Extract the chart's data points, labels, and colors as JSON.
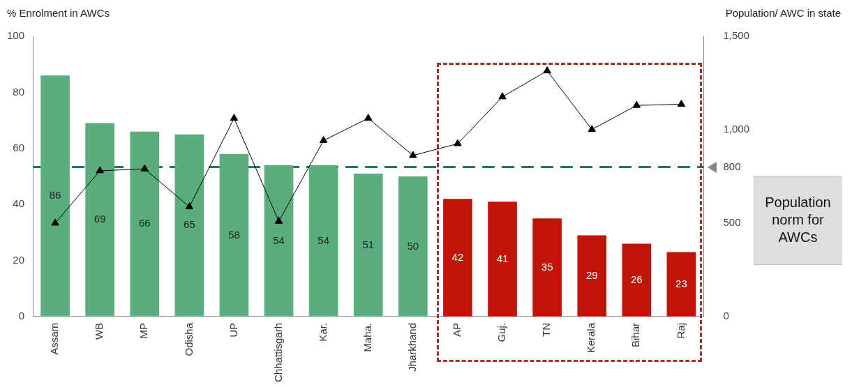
{
  "chart_data": {
    "type": "bar",
    "ylabel": "% Enrolment in AWCs",
    "y2label": "Population/ AWC in state",
    "categories": [
      "Assam",
      "WB",
      "MP",
      "Odisha",
      "UP",
      "Chhattisgarh",
      "Kar.",
      "Maha.",
      "Jharkhand",
      "AP",
      "Guj.",
      "TN",
      "Kerala",
      "Bihar",
      "Raj"
    ],
    "series": [
      {
        "colors": [
          "#5aae7e",
          "#5aae7e",
          "#5aae7e",
          "#5aae7e",
          "#5aae7e",
          "#5aae7e",
          "#5aae7e",
          "#5aae7e",
          "#5aae7e",
          "#c01408",
          "#c01408",
          "#c01408",
          "#c01408",
          "#c01408",
          "#c01408"
        ],
        "values": [
          86,
          69,
          66,
          65,
          58,
          54,
          54,
          51,
          50,
          42,
          41,
          35,
          29,
          26,
          23
        ],
        "value_labels": [
          "86",
          "69",
          "66",
          "65",
          "58",
          "54",
          "54",
          "51",
          "50",
          "42",
          "41",
          "35",
          "29",
          "26",
          "23"
        ]
      },
      {
        "type": "line",
        "axis": "y2",
        "color": "#000000",
        "values": [
          500,
          780,
          790,
          587,
          1061,
          510,
          942,
          1061,
          862,
          925,
          1176,
          1315,
          1001,
          1130,
          1136
        ]
      }
    ],
    "marker": "triangle",
    "ylim": [
      0,
      100
    ],
    "yticks": [
      0,
      20,
      40,
      60,
      80,
      100
    ],
    "y2lim": [
      0,
      1500
    ],
    "y2ticks": [
      0,
      500,
      800,
      {
        "value": 1000,
        "label": "1,000"
      },
      {
        "value": 1500,
        "label": "1,500"
      }
    ],
    "ref_lines": [
      {
        "axis": "y2",
        "value": 800,
        "color": "#1e7b5c",
        "line_style": "dashed"
      }
    ],
    "annotations": [
      "Population norm for AWCs"
    ]
  }
}
